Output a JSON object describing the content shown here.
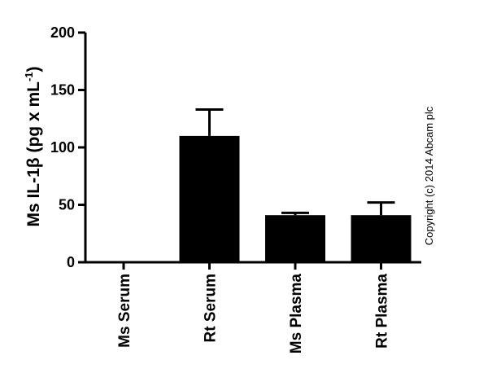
{
  "chart_data": {
    "type": "bar",
    "categories": [
      "Ms Serum",
      "Rt Serum",
      "Ms Plasma",
      "Rt Plasma"
    ],
    "values": [
      1,
      110,
      41,
      41
    ],
    "error_upper": [
      1,
      133,
      43,
      52
    ],
    "ylabel": {
      "prefix": "Ms IL-1",
      "beta": "β",
      "units": " (pg x mL",
      "exponent": "-1",
      "close": ")"
    },
    "ylim": [
      0,
      200
    ],
    "yticks": [
      "0",
      "50",
      "100",
      "150",
      "200"
    ],
    "ytick_values": [
      0,
      50,
      100,
      150,
      200
    ],
    "bar_color": "#000000",
    "grid": false,
    "legend": "none"
  },
  "copyright": "Copyright (c) 2014 Abcam plc"
}
